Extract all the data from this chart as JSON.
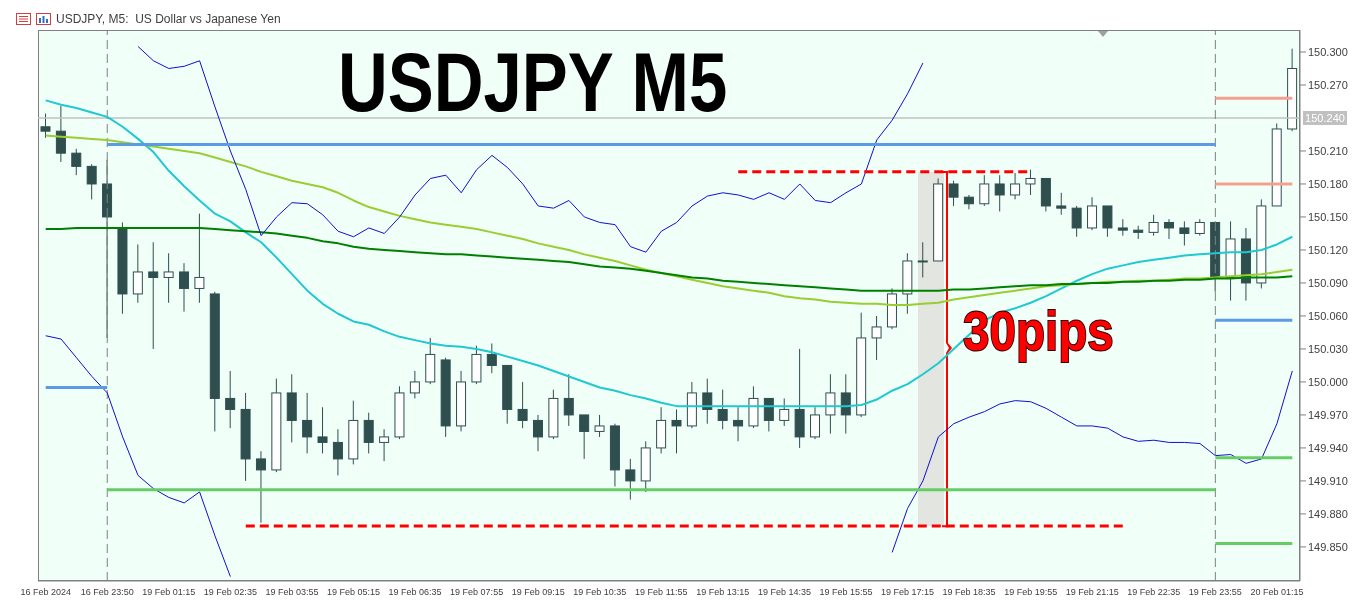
{
  "chart_data": {
    "type": "candlestick",
    "title": "USDJPY, M5:  US Dollar vs Japanese Yen",
    "annotations": [
      "USDJPY M5",
      "30pips"
    ],
    "categories": [
      "16 Feb 2024",
      null,
      null,
      null,
      "16 Feb 23:50",
      null,
      null,
      null,
      "19 Feb 01:15",
      null,
      null,
      null,
      "19 Feb 02:35",
      null,
      null,
      null,
      "19 Feb 03:55",
      null,
      null,
      null,
      "19 Feb 05:15",
      null,
      null,
      null,
      "19 Feb 06:35",
      null,
      null,
      null,
      "19 Feb 07:55",
      null,
      null,
      null,
      "19 Feb 09:15",
      null,
      null,
      null,
      "19 Feb 10:35",
      null,
      null,
      null,
      "19 Feb 11:55",
      null,
      null,
      null,
      "19 Feb 13:15",
      null,
      null,
      null,
      "19 Feb 14:35",
      null,
      null,
      null,
      "19 Feb 15:55",
      null,
      null,
      null,
      "19 Feb 17:15",
      null,
      null,
      null,
      "19 Feb 18:35",
      null,
      null,
      null,
      "19 Feb 19:55",
      null,
      null,
      null,
      "19 Feb 21:15",
      null,
      null,
      null,
      "19 Feb 22:35",
      null,
      null,
      null,
      "19 Feb 23:55",
      null,
      null,
      null,
      "20 Feb 01:15",
      null
    ],
    "color": "#2f4f4f",
    "ohlc": [
      [
        150.232,
        150.244,
        150.222,
        150.228
      ],
      [
        150.228,
        150.251,
        150.2,
        150.208
      ],
      [
        150.208,
        150.212,
        150.188,
        150.196
      ],
      [
        150.196,
        150.198,
        150.166,
        150.18
      ],
      [
        150.18,
        150.202,
        150.04,
        150.15
      ],
      [
        150.14,
        150.145,
        150.062,
        150.08
      ],
      [
        150.08,
        150.125,
        150.072,
        150.1
      ],
      [
        150.1,
        150.127,
        150.03,
        150.095
      ],
      [
        150.095,
        150.117,
        150.072,
        150.1
      ],
      [
        150.1,
        150.108,
        150.064,
        150.085
      ],
      [
        150.085,
        150.153,
        150.072,
        150.095
      ],
      [
        150.08,
        150.082,
        149.955,
        149.985
      ],
      [
        149.985,
        150.01,
        149.958,
        149.975
      ],
      [
        149.975,
        149.99,
        149.91,
        149.93
      ],
      [
        149.93,
        149.937,
        149.872,
        149.92
      ],
      [
        149.92,
        150.003,
        149.918,
        149.99
      ],
      [
        149.99,
        150.007,
        149.945,
        149.965
      ],
      [
        149.965,
        149.99,
        149.935,
        149.95
      ],
      [
        149.95,
        149.977,
        149.935,
        149.945
      ],
      [
        149.945,
        149.957,
        149.915,
        149.93
      ],
      [
        149.93,
        149.983,
        149.925,
        149.965
      ],
      [
        149.965,
        149.972,
        149.935,
        149.945
      ],
      [
        149.945,
        149.957,
        149.928,
        149.95
      ],
      [
        149.95,
        149.996,
        149.948,
        149.99
      ],
      [
        149.99,
        150.01,
        149.985,
        150.0
      ],
      [
        150.0,
        150.04,
        149.998,
        150.025
      ],
      [
        150.02,
        150.022,
        149.95,
        149.96
      ],
      [
        149.96,
        150.01,
        149.955,
        150.0
      ],
      [
        150.0,
        150.033,
        149.998,
        150.025
      ],
      [
        150.025,
        150.035,
        150.008,
        150.015
      ],
      [
        150.015,
        150.015,
        149.962,
        149.975
      ],
      [
        149.975,
        150.0,
        149.958,
        149.965
      ],
      [
        149.965,
        149.97,
        149.937,
        149.95
      ],
      [
        149.95,
        149.993,
        149.948,
        149.985
      ],
      [
        149.985,
        150.007,
        149.96,
        149.97
      ],
      [
        149.97,
        149.97,
        149.93,
        149.955
      ],
      [
        149.955,
        149.97,
        149.95,
        149.96
      ],
      [
        149.96,
        149.962,
        149.905,
        149.92
      ],
      [
        149.92,
        149.93,
        149.893,
        149.91
      ],
      [
        149.91,
        149.946,
        149.9,
        149.94
      ],
      [
        149.94,
        149.977,
        149.935,
        149.965
      ],
      [
        149.965,
        149.975,
        149.935,
        149.96
      ],
      [
        149.96,
        150.0,
        149.958,
        149.99
      ],
      [
        149.99,
        150.003,
        149.962,
        149.975
      ],
      [
        149.975,
        149.993,
        149.957,
        149.965
      ],
      [
        149.965,
        149.977,
        149.946,
        149.96
      ],
      [
        149.96,
        149.996,
        149.958,
        149.985
      ],
      [
        149.985,
        149.985,
        149.955,
        149.965
      ],
      [
        149.965,
        149.985,
        149.96,
        149.975
      ],
      [
        149.975,
        150.03,
        149.94,
        149.95
      ],
      [
        149.95,
        149.977,
        149.948,
        149.97
      ],
      [
        149.97,
        150.007,
        149.953,
        149.99
      ],
      [
        149.99,
        150.007,
        149.953,
        149.97
      ],
      [
        149.97,
        150.063,
        149.968,
        150.04
      ],
      [
        150.04,
        150.06,
        150.02,
        150.05
      ],
      [
        150.05,
        150.085,
        150.048,
        150.08
      ],
      [
        150.08,
        150.117,
        150.062,
        150.11
      ],
      [
        150.11,
        150.127,
        150.095,
        150.11
      ],
      [
        150.11,
        150.185,
        150.11,
        150.18
      ],
      [
        150.18,
        150.183,
        150.16,
        150.168
      ],
      [
        150.168,
        150.17,
        150.157,
        150.162
      ],
      [
        150.162,
        150.188,
        150.16,
        150.18
      ],
      [
        150.18,
        150.188,
        150.155,
        150.17
      ],
      [
        150.17,
        150.19,
        150.166,
        150.18
      ],
      [
        150.18,
        150.193,
        150.17,
        150.185
      ],
      [
        150.185,
        150.185,
        150.155,
        150.16
      ],
      [
        150.16,
        150.172,
        150.152,
        150.158
      ],
      [
        150.158,
        150.16,
        150.132,
        150.14
      ],
      [
        150.14,
        150.168,
        150.138,
        150.16
      ],
      [
        150.16,
        150.16,
        150.132,
        150.14
      ],
      [
        150.14,
        150.148,
        150.133,
        150.138
      ],
      [
        150.138,
        150.142,
        150.13,
        150.136
      ],
      [
        150.136,
        150.152,
        150.133,
        150.145
      ],
      [
        150.145,
        150.148,
        150.13,
        150.14
      ],
      [
        150.14,
        150.146,
        150.124,
        150.135
      ],
      [
        150.135,
        150.148,
        150.133,
        150.145
      ],
      [
        150.145,
        150.146,
        150.082,
        150.095
      ],
      [
        150.095,
        150.146,
        150.074,
        150.13
      ],
      [
        150.13,
        150.14,
        150.074,
        150.09
      ],
      [
        150.09,
        150.166,
        150.085,
        150.16
      ],
      [
        150.16,
        150.235,
        150.16,
        150.23
      ],
      [
        150.23,
        150.303,
        150.228,
        150.285
      ]
    ],
    "series": [
      {
        "type": "line",
        "color": "#20c8d0",
        "values": [
          150.256,
          150.252,
          150.249,
          150.245,
          150.241,
          150.232,
          150.221,
          150.209,
          150.192,
          150.178,
          150.165,
          150.153,
          150.146,
          150.136,
          150.127,
          150.113,
          150.098,
          150.083,
          150.071,
          150.062,
          150.055,
          150.052,
          150.046,
          150.041,
          150.038,
          150.035,
          150.033,
          150.032,
          150.03,
          150.027,
          150.023,
          150.019,
          150.015,
          150.01,
          150.005,
          150.0,
          149.995,
          149.992,
          149.988,
          149.985,
          149.981,
          149.978,
          149.978,
          149.978,
          149.978,
          149.978,
          149.978,
          149.978,
          149.978,
          149.978,
          149.978,
          149.978,
          149.978,
          149.979,
          149.984,
          149.992,
          149.998,
          150.007,
          150.017,
          150.03,
          150.043,
          150.056,
          150.063,
          150.067,
          150.072,
          150.078,
          150.085,
          150.092,
          150.098,
          150.103,
          150.106,
          150.109,
          150.111,
          150.113,
          150.115,
          150.116,
          150.117,
          150.118,
          150.118,
          150.12,
          150.125,
          150.132
        ]
      },
      {
        "type": "line",
        "color": "#9acd32",
        "values": [
          150.224,
          150.223,
          150.222,
          150.221,
          150.22,
          150.218,
          150.216,
          150.214,
          150.212,
          150.21,
          150.208,
          150.204,
          150.2,
          150.196,
          150.191,
          150.187,
          150.183,
          150.18,
          150.177,
          150.172,
          150.165,
          150.159,
          150.155,
          150.151,
          150.148,
          150.145,
          150.143,
          150.141,
          150.139,
          150.136,
          150.133,
          150.13,
          150.126,
          150.123,
          150.12,
          150.116,
          150.113,
          150.11,
          150.106,
          150.102,
          150.099,
          150.096,
          150.093,
          150.09,
          150.087,
          150.085,
          150.083,
          150.081,
          150.078,
          150.076,
          150.075,
          150.073,
          150.072,
          150.071,
          150.071,
          150.07,
          150.07,
          150.071,
          150.072,
          150.075,
          150.077,
          150.079,
          150.081,
          150.083,
          150.085,
          150.087,
          150.088,
          150.089,
          150.09,
          150.091,
          150.091,
          150.092,
          150.092,
          150.093,
          150.094,
          150.094,
          150.095,
          150.096,
          150.097,
          150.098,
          150.1,
          150.102
        ]
      },
      {
        "type": "line",
        "color": "#008000",
        "values": [
          150.139,
          150.139,
          150.14,
          150.14,
          150.14,
          150.14,
          150.14,
          150.14,
          150.14,
          150.14,
          150.14,
          150.139,
          150.138,
          150.137,
          150.136,
          150.135,
          150.133,
          150.131,
          150.128,
          150.126,
          150.123,
          150.121,
          150.12,
          150.119,
          150.118,
          150.117,
          150.116,
          150.116,
          150.115,
          150.114,
          150.113,
          150.112,
          150.111,
          150.11,
          150.109,
          150.107,
          150.105,
          150.104,
          150.103,
          150.101,
          150.099,
          150.097,
          150.095,
          150.094,
          150.092,
          150.091,
          150.09,
          150.089,
          150.088,
          150.087,
          150.086,
          150.085,
          150.084,
          150.083,
          150.083,
          150.083,
          150.083,
          150.083,
          150.083,
          150.084,
          150.084,
          150.085,
          150.086,
          150.087,
          150.088,
          150.088,
          150.089,
          150.089,
          150.09,
          150.09,
          150.091,
          150.091,
          150.092,
          150.092,
          150.093,
          150.093,
          150.094,
          150.094,
          150.095,
          150.095,
          150.095,
          150.096
        ]
      },
      {
        "type": "line",
        "color": "#1010d0",
        "values": [
          null,
          null,
          null,
          null,
          null,
          null,
          150.305,
          150.292,
          150.285,
          150.287,
          150.292,
          150.25,
          150.21,
          150.175,
          150.133,
          150.15,
          150.163,
          150.162,
          150.152,
          150.137,
          150.132,
          150.14,
          150.135,
          150.15,
          150.17,
          150.185,
          150.188,
          150.172,
          150.193,
          150.206,
          150.195,
          150.18,
          150.16,
          150.158,
          150.165,
          150.15,
          150.145,
          150.143,
          150.123,
          150.118,
          150.137,
          150.145,
          150.16,
          150.169,
          150.172,
          150.17,
          150.166,
          150.172,
          150.166,
          150.18,
          150.165,
          150.163,
          150.172,
          150.18,
          150.22,
          150.238,
          150.262,
          150.29,
          null,
          null,
          null,
          null,
          null,
          null,
          null,
          null,
          null,
          null,
          null,
          null,
          null,
          null,
          null,
          null,
          null,
          null,
          null,
          null,
          null,
          null,
          null,
          null
        ]
      },
      {
        "type": "line",
        "color": "#1010d0",
        "values": [
          150.042,
          150.039,
          150.022,
          150.005,
          149.99,
          149.95,
          149.915,
          149.903,
          149.895,
          149.89,
          149.9,
          149.86,
          149.823,
          null,
          null,
          null,
          null,
          null,
          null,
          null,
          null,
          null,
          null,
          null,
          null,
          null,
          null,
          null,
          null,
          null,
          null,
          null,
          null,
          null,
          null,
          null,
          null,
          null,
          null,
          null,
          null,
          null,
          null,
          null,
          null,
          null,
          null,
          null,
          null,
          null,
          null,
          null,
          null,
          null,
          null,
          149.845,
          149.885,
          149.91,
          149.95,
          149.962,
          149.968,
          149.973,
          149.98,
          149.983,
          149.982,
          149.976,
          149.968,
          149.96,
          149.96,
          149.958,
          149.95,
          149.946,
          149.947,
          149.945,
          149.945,
          149.944,
          149.933,
          149.934,
          149.926,
          149.93,
          149.962,
          150.01
        ]
      },
      {
        "type": "line",
        "color": "#5b9be6",
        "values": [
          149.995,
          149.995,
          149.995,
          149.995,
          149.995,
          null,
          null,
          null,
          null,
          null,
          null,
          null,
          null,
          null,
          null,
          null,
          null,
          null,
          null,
          null,
          null,
          null,
          null,
          null,
          null,
          null,
          null,
          null,
          null,
          null,
          null,
          null,
          null,
          null,
          null,
          null,
          null,
          null,
          null,
          null,
          null,
          null,
          null,
          null,
          null,
          null,
          null,
          null,
          null,
          null,
          null,
          null,
          null,
          null,
          null,
          null,
          null,
          null,
          null,
          null,
          null,
          null,
          null,
          null,
          null,
          null,
          null,
          null,
          null,
          null,
          null,
          null,
          null,
          null,
          null,
          null,
          null,
          null,
          null,
          null,
          null,
          null
        ]
      },
      {
        "type": "line",
        "color": "#5b9be6",
        "values": [
          null,
          null,
          null,
          null,
          150.216,
          150.216,
          150.216,
          150.216,
          150.216,
          150.216,
          150.216,
          150.216,
          150.216,
          150.216,
          150.216,
          150.216,
          150.216,
          150.216,
          150.216,
          150.216,
          150.216,
          150.216,
          150.216,
          150.216,
          150.216,
          150.216,
          150.216,
          150.216,
          150.216,
          150.216,
          150.216,
          150.216,
          150.216,
          150.216,
          150.216,
          150.216,
          150.216,
          150.216,
          150.216,
          150.216,
          150.216,
          150.216,
          150.216,
          150.216,
          150.216,
          150.216,
          150.216,
          150.216,
          150.216,
          150.216,
          150.216,
          150.216,
          150.216,
          150.216,
          150.216,
          150.216,
          150.216,
          150.216,
          150.216,
          150.216,
          150.216,
          150.216,
          150.216,
          150.216,
          150.216,
          150.216,
          150.216,
          150.216,
          150.216,
          150.216,
          150.216,
          150.216,
          150.216,
          150.216,
          150.216,
          150.216,
          150.216,
          null,
          null,
          null,
          null,
          null
        ]
      },
      {
        "type": "line",
        "color": "#66cc66",
        "values": [
          null,
          null,
          null,
          null,
          149.902,
          149.902,
          149.902,
          149.902,
          149.902,
          149.902,
          149.902,
          149.902,
          149.902,
          149.902,
          149.902,
          149.902,
          149.902,
          149.902,
          149.902,
          149.902,
          149.902,
          149.902,
          149.902,
          149.902,
          149.902,
          149.902,
          149.902,
          149.902,
          149.902,
          149.902,
          149.902,
          149.902,
          149.902,
          149.902,
          149.902,
          149.902,
          149.902,
          149.902,
          149.902,
          149.902,
          149.902,
          149.902,
          149.902,
          149.902,
          149.902,
          149.902,
          149.902,
          149.902,
          149.902,
          149.902,
          149.902,
          149.902,
          149.902,
          149.902,
          149.902,
          149.902,
          149.902,
          149.902,
          149.902,
          149.902,
          149.902,
          149.902,
          149.902,
          149.902,
          149.902,
          149.902,
          149.902,
          149.902,
          149.902,
          149.902,
          149.902,
          149.902,
          149.902,
          149.902,
          149.902,
          149.902,
          149.902,
          null,
          null,
          null,
          null,
          null
        ]
      },
      {
        "type": "line",
        "color": "#5b9be6",
        "values": [
          null,
          null,
          null,
          null,
          null,
          null,
          null,
          null,
          null,
          null,
          null,
          null,
          null,
          null,
          null,
          null,
          null,
          null,
          null,
          null,
          null,
          null,
          null,
          null,
          null,
          null,
          null,
          null,
          null,
          null,
          null,
          null,
          null,
          null,
          null,
          null,
          null,
          null,
          null,
          null,
          null,
          null,
          null,
          null,
          null,
          null,
          null,
          null,
          null,
          null,
          null,
          null,
          null,
          null,
          null,
          null,
          null,
          null,
          null,
          null,
          null,
          null,
          null,
          null,
          null,
          null,
          null,
          null,
          null,
          null,
          null,
          null,
          null,
          null,
          null,
          null,
          150.056,
          150.056,
          150.056,
          150.056,
          150.056,
          150.056
        ]
      },
      {
        "type": "line",
        "color": "#f4a090",
        "values": [
          null,
          null,
          null,
          null,
          null,
          null,
          null,
          null,
          null,
          null,
          null,
          null,
          null,
          null,
          null,
          null,
          null,
          null,
          null,
          null,
          null,
          null,
          null,
          null,
          null,
          null,
          null,
          null,
          null,
          null,
          null,
          null,
          null,
          null,
          null,
          null,
          null,
          null,
          null,
          null,
          null,
          null,
          null,
          null,
          null,
          null,
          null,
          null,
          null,
          null,
          null,
          null,
          null,
          null,
          null,
          null,
          null,
          null,
          null,
          null,
          null,
          null,
          null,
          null,
          null,
          null,
          null,
          null,
          null,
          null,
          null,
          null,
          null,
          null,
          null,
          null,
          150.258,
          150.258,
          150.258,
          150.258,
          150.258,
          150.258
        ]
      },
      {
        "type": "line",
        "color": "#f4a090",
        "values": [
          null,
          null,
          null,
          null,
          null,
          null,
          null,
          null,
          null,
          null,
          null,
          null,
          null,
          null,
          null,
          null,
          null,
          null,
          null,
          null,
          null,
          null,
          null,
          null,
          null,
          null,
          null,
          null,
          null,
          null,
          null,
          null,
          null,
          null,
          null,
          null,
          null,
          null,
          null,
          null,
          null,
          null,
          null,
          null,
          null,
          null,
          null,
          null,
          null,
          null,
          null,
          null,
          null,
          null,
          null,
          null,
          null,
          null,
          null,
          null,
          null,
          null,
          null,
          null,
          null,
          null,
          null,
          null,
          null,
          null,
          null,
          null,
          null,
          null,
          null,
          null,
          150.18,
          150.18,
          150.18,
          150.18,
          150.18,
          150.18
        ]
      },
      {
        "type": "line",
        "color": "#66cc66",
        "values": [
          null,
          null,
          null,
          null,
          null,
          null,
          null,
          null,
          null,
          null,
          null,
          null,
          null,
          null,
          null,
          null,
          null,
          null,
          null,
          null,
          null,
          null,
          null,
          null,
          null,
          null,
          null,
          null,
          null,
          null,
          null,
          null,
          null,
          null,
          null,
          null,
          null,
          null,
          null,
          null,
          null,
          null,
          null,
          null,
          null,
          null,
          null,
          null,
          null,
          null,
          null,
          null,
          null,
          null,
          null,
          null,
          null,
          null,
          null,
          null,
          null,
          null,
          null,
          null,
          null,
          null,
          null,
          null,
          null,
          null,
          null,
          null,
          null,
          null,
          null,
          null,
          149.931,
          149.931,
          149.931,
          149.931,
          149.931,
          149.931
        ]
      },
      {
        "type": "line",
        "color": "#66cc66",
        "values": [
          null,
          null,
          null,
          null,
          null,
          null,
          null,
          null,
          null,
          null,
          null,
          null,
          null,
          null,
          null,
          null,
          null,
          null,
          null,
          null,
          null,
          null,
          null,
          null,
          null,
          null,
          null,
          null,
          null,
          null,
          null,
          null,
          null,
          null,
          null,
          null,
          null,
          null,
          null,
          null,
          null,
          null,
          null,
          null,
          null,
          null,
          null,
          null,
          null,
          null,
          null,
          null,
          null,
          null,
          null,
          null,
          null,
          null,
          null,
          null,
          null,
          null,
          null,
          null,
          null,
          null,
          null,
          null,
          null,
          null,
          null,
          null,
          null,
          null,
          null,
          null,
          149.853,
          149.853,
          149.853,
          149.853,
          149.853,
          149.853
        ]
      },
      {
        "type": "line",
        "color": "#ff0000",
        "line_style": "dashed",
        "values": [
          null,
          null,
          null,
          null,
          null,
          null,
          null,
          null,
          null,
          null,
          null,
          null,
          null,
          null,
          null,
          null,
          null,
          null,
          null,
          null,
          null,
          null,
          null,
          null,
          null,
          null,
          null,
          null,
          null,
          null,
          null,
          null,
          null,
          null,
          null,
          null,
          null,
          null,
          null,
          null,
          null,
          null,
          null,
          null,
          null,
          150.191,
          150.191,
          150.191,
          150.191,
          150.191,
          150.191,
          150.191,
          150.191,
          150.191,
          150.191,
          150.191,
          150.191,
          150.191,
          150.191,
          150.191,
          150.191,
          150.191,
          150.191,
          150.191,
          150.191,
          null,
          null,
          null,
          null,
          null,
          null,
          null,
          null,
          null,
          null,
          null,
          null,
          null,
          null,
          null,
          null,
          null
        ]
      },
      {
        "type": "line",
        "color": "#ff0000",
        "line_style": "dashed",
        "values": [
          null,
          null,
          null,
          null,
          null,
          null,
          null,
          null,
          null,
          null,
          null,
          null,
          null,
          149.869,
          149.869,
          149.869,
          149.869,
          149.869,
          149.869,
          149.869,
          149.869,
          149.869,
          149.869,
          149.869,
          149.869,
          149.869,
          149.869,
          149.869,
          149.869,
          149.869,
          149.869,
          149.869,
          149.869,
          149.869,
          149.869,
          149.869,
          149.869,
          149.869,
          149.869,
          149.869,
          149.869,
          149.869,
          149.869,
          149.869,
          149.869,
          149.869,
          149.869,
          149.869,
          149.869,
          149.869,
          149.869,
          149.869,
          149.869,
          149.869,
          149.869,
          149.869,
          149.869,
          149.869,
          149.869,
          149.869,
          149.869,
          149.869,
          149.869,
          149.869,
          149.869,
          149.869,
          149.869,
          149.869,
          149.869,
          149.869,
          149.869,
          null,
          null,
          null,
          null,
          null,
          null,
          null,
          null,
          null,
          null,
          null
        ]
      }
    ],
    "ref_lines": [
      {
        "axis": "y",
        "value": 150.24,
        "label": "150.240",
        "color": "#c0c0c0"
      },
      {
        "axis": "x",
        "value": "16 Feb 23:50",
        "color": "#808080",
        "line_style": "dashed"
      },
      {
        "axis": "x",
        "value": "19 Feb 23:55",
        "color": "#808080",
        "line_style": "dashed"
      }
    ],
    "ylim": [
      149.819,
      150.32
    ],
    "yticks": [
      {
        "value": 149.85,
        "label": "149.850"
      },
      {
        "value": 149.88,
        "label": "149.880"
      },
      {
        "value": 149.91,
        "label": "149.910"
      },
      {
        "value": 149.94,
        "label": "149.940"
      },
      {
        "value": 149.97,
        "label": "149.970"
      },
      {
        "value": 150.0,
        "label": "150.000"
      },
      {
        "value": 150.03,
        "label": "150.030"
      },
      {
        "value": 150.06,
        "label": "150.060"
      },
      {
        "value": 150.09,
        "label": "150.090"
      },
      {
        "value": 150.12,
        "label": "150.120"
      },
      {
        "value": 150.15,
        "label": "150.150"
      },
      {
        "value": 150.18,
        "label": "150.180"
      },
      {
        "value": 150.21,
        "label": "150.210"
      },
      {
        "value": 150.27,
        "label": "150.270"
      },
      {
        "value": 150.3,
        "label": "150.300"
      }
    ]
  }
}
